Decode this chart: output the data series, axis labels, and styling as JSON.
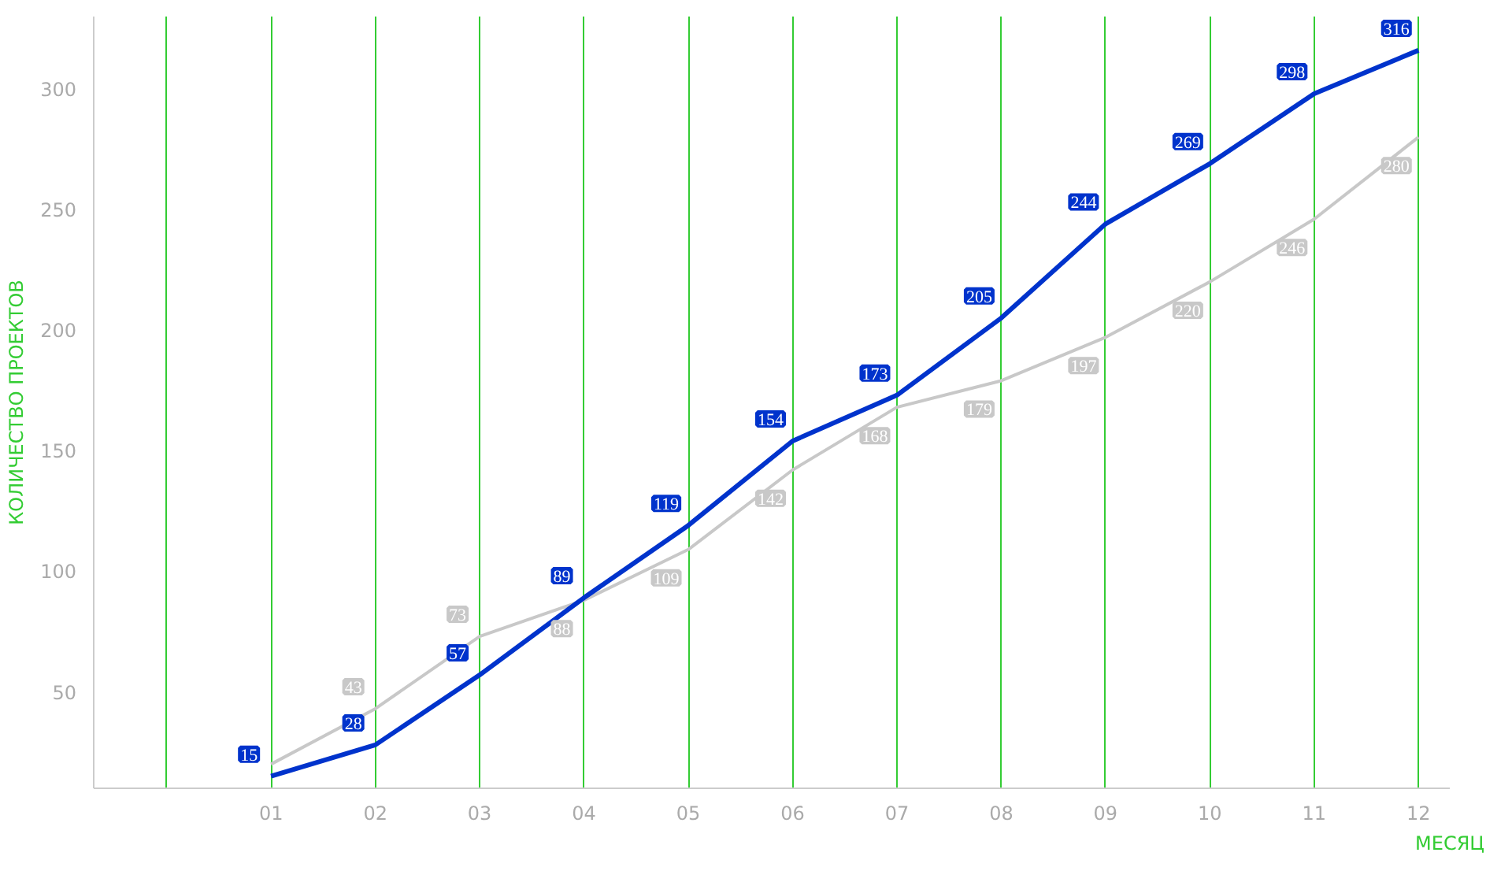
{
  "chart_data": {
    "type": "line",
    "xlabel": "МЕСЯЦ",
    "ylabel": "КОЛИЧЕСТВО ПРОЕКТОВ",
    "x": [
      1,
      2,
      3,
      4,
      5,
      6,
      7,
      8,
      9,
      10,
      11,
      12
    ],
    "series": [
      {
        "color": "#0033cc",
        "values": [
          15,
          28,
          57,
          89,
          119,
          154,
          173,
          205,
          244,
          269,
          298,
          316
        ],
        "value_labels": [
          "15",
          "28",
          "57",
          "89",
          "119",
          "154",
          "173",
          "205",
          "244",
          "269",
          "298",
          "316"
        ]
      },
      {
        "color": "#c8c8c8",
        "values": [
          20,
          43,
          73,
          88,
          109,
          142,
          168,
          179,
          197,
          220,
          246,
          280
        ],
        "value_labels": [
          null,
          "43",
          "73",
          "88",
          "109",
          "142",
          "168",
          "179",
          "197",
          "220",
          "246",
          "280"
        ]
      }
    ],
    "xlim": [
      -0.7,
      12.3
    ],
    "xticks": [
      {
        "value": 0,
        "label": null
      },
      {
        "value": 1,
        "label": "01"
      },
      {
        "value": 2,
        "label": "02"
      },
      {
        "value": 3,
        "label": "03"
      },
      {
        "value": 4,
        "label": "04"
      },
      {
        "value": 5,
        "label": "05"
      },
      {
        "value": 6,
        "label": "06"
      },
      {
        "value": 7,
        "label": "07"
      },
      {
        "value": 8,
        "label": "08"
      },
      {
        "value": 9,
        "label": "09"
      },
      {
        "value": 10,
        "label": "10"
      },
      {
        "value": 11,
        "label": "11"
      },
      {
        "value": 12,
        "label": "12"
      }
    ],
    "ylim": [
      10,
      330
    ],
    "yticks": [
      50,
      100,
      150,
      200,
      250,
      300
    ],
    "grid": "x",
    "marker": "none",
    "line_style": "solid"
  }
}
